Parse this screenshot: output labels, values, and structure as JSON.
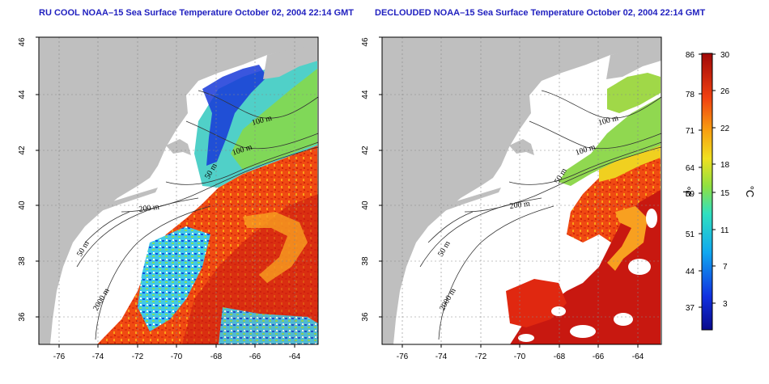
{
  "colors": {
    "title": "#1f1fbf",
    "land": "#bfbfbf",
    "ocean": "#ffffff"
  },
  "panels": [
    {
      "title": "RU COOL NOAA–15 Sea Surface Temperature October 02, 2004 22:14 GMT"
    },
    {
      "title": "DECLOUDED NOAA–15 Sea Surface Temperature October 02, 2004 22:14 GMT"
    }
  ],
  "axes": {
    "lat_ticks": [
      "46",
      "44",
      "42",
      "40",
      "38",
      "36"
    ],
    "lon_ticks": [
      "-76",
      "-74",
      "-72",
      "-70",
      "-68",
      "-66",
      "-64"
    ]
  },
  "contours": {
    "labels": [
      "100 m",
      "100 m",
      "50 m",
      "200 m",
      "50 m",
      "2000 m"
    ]
  },
  "colorbar": {
    "fahrenheit_ticks": [
      "86",
      "78",
      "71",
      "64",
      "59",
      "51",
      "44",
      "37"
    ],
    "celsius_ticks": [
      "30",
      "26",
      "22",
      "18",
      "15",
      "11",
      "7",
      "3"
    ],
    "fahrenheit_unit": "°F",
    "celsius_unit": "°C"
  }
}
